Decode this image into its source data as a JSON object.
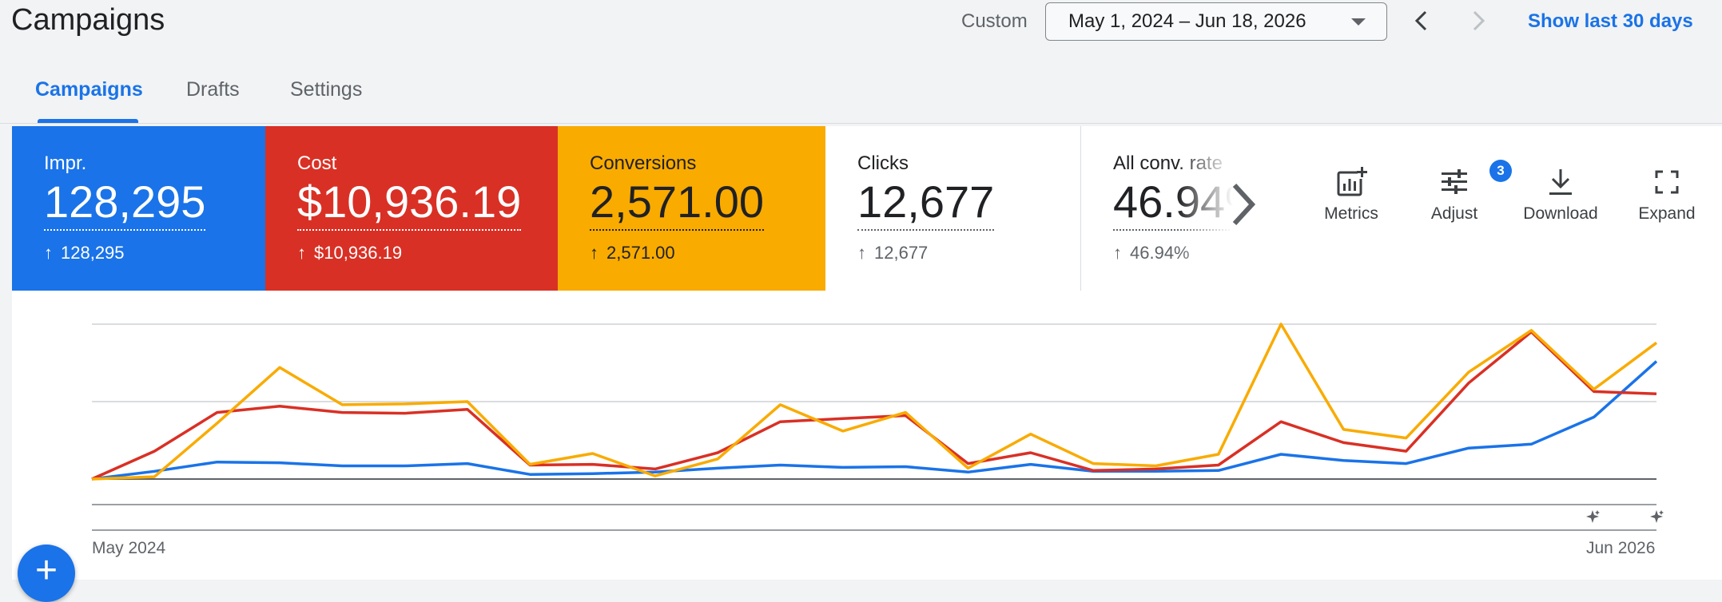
{
  "header": {
    "title": "Campaigns",
    "custom_label": "Custom",
    "date_range": "May 1, 2024 – Jun 18, 2026",
    "show_last_label": "Show last 30 days"
  },
  "tabs": [
    {
      "label": "Campaigns",
      "active": true
    },
    {
      "label": "Drafts",
      "active": false
    },
    {
      "label": "Settings",
      "active": false
    }
  ],
  "scorecards": [
    {
      "label": "Impr.",
      "value": "128,295",
      "delta": "128,295",
      "color": "#1a73e8"
    },
    {
      "label": "Cost",
      "value": "$10,936.19",
      "delta": "$10,936.19",
      "color": "#d93025"
    },
    {
      "label": "Conversions",
      "value": "2,571.00",
      "delta": "2,571.00",
      "color": "#f9ab00"
    },
    {
      "label": "Clicks",
      "value": "12,677",
      "delta": "12,677",
      "color": "#ffffff"
    },
    {
      "label": "All conv. rate",
      "value": "46.94%",
      "delta": "46.94%",
      "color": "#ffffff"
    }
  ],
  "toolbar": {
    "metrics_label": "Metrics",
    "adjust_label": "Adjust",
    "adjust_badge": "3",
    "download_label": "Download",
    "expand_label": "Expand"
  },
  "icons": {
    "up_arrow": "↑",
    "fab_plus": "+"
  },
  "chart_data": {
    "type": "line",
    "x_start_label": "May 2024",
    "x_end_label": "Jun 2026",
    "ylim": [
      0,
      100
    ],
    "grid": true,
    "series": [
      {
        "color": "#1a73e8",
        "values": [
          0,
          5,
          11,
          10.5,
          8.5,
          8.5,
          10,
          3,
          3.5,
          4.5,
          7,
          9,
          7.5,
          8,
          4.5,
          9.5,
          5,
          5,
          5.5,
          16,
          12,
          10,
          20,
          22.5,
          40,
          76
        ]
      },
      {
        "color": "#d93025",
        "values": [
          0,
          18,
          43,
          47,
          43,
          42.5,
          45,
          9,
          9.5,
          6.5,
          17,
          37,
          39,
          41,
          10,
          17,
          5.5,
          6.5,
          9,
          37,
          23.5,
          18,
          62,
          95,
          56.5,
          55
        ]
      },
      {
        "color": "#f9ab00",
        "values": [
          0,
          1.5,
          36,
          72,
          48,
          48.5,
          50,
          9.5,
          16.5,
          2,
          13,
          48,
          31,
          43,
          7,
          29,
          10,
          8.5,
          16,
          100,
          32,
          26.5,
          69,
          96,
          58,
          88
        ]
      }
    ]
  }
}
